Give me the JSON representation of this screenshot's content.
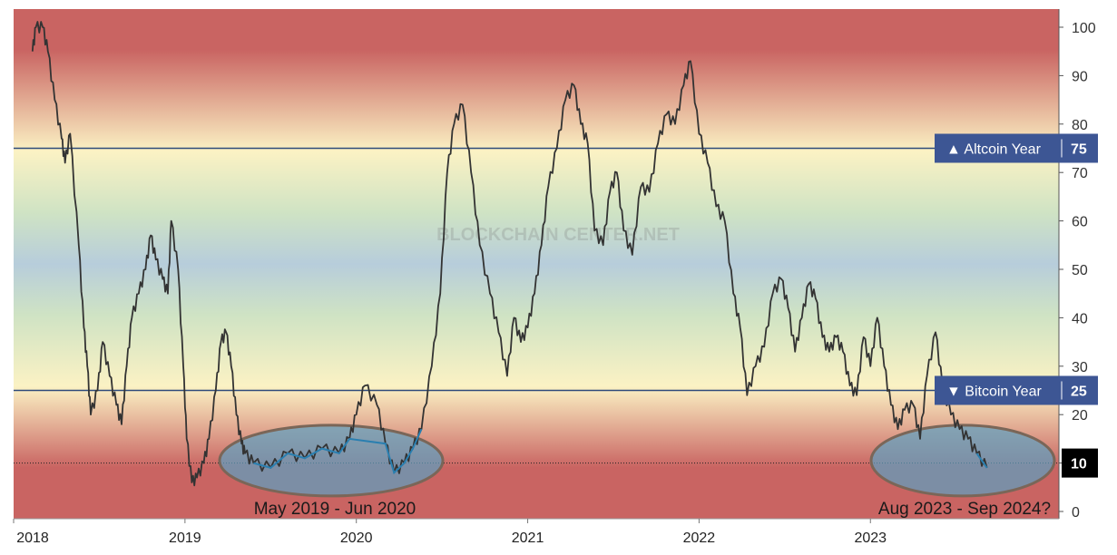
{
  "chart_data": {
    "type": "line",
    "title": "",
    "watermark": "BLOCKCHAIN CENTER.NET",
    "ylim": [
      0,
      100
    ],
    "yticks": [
      0,
      10,
      20,
      30,
      40,
      50,
      60,
      70,
      80,
      90,
      100
    ],
    "xlim": [
      2018.0,
      2024.1
    ],
    "x_tick_labels": [
      "2018",
      "2019",
      "2020",
      "2021",
      "2022",
      "2023"
    ],
    "x_ticks": [
      2018,
      2019,
      2020,
      2021,
      2022,
      2023
    ],
    "colors": {
      "line": "#333333",
      "highlight_line": "#2a7fb0",
      "threshold_line": "#2e4a7a",
      "label_box": "#3d5694",
      "current_box": "#000000",
      "ellipse_fill": "#5b9fc2",
      "ellipse_stroke": "#7a6658",
      "band_red": "#c96462",
      "band_yellow": "#fbf2c4",
      "band_green": "#cfe3c4",
      "band_blue": "#b7cddb"
    },
    "thresholds": [
      {
        "label": "▲ Altcoin Year",
        "value": 75,
        "value_label": "75"
      },
      {
        "label": "▼ Bitcoin Year",
        "value": 25,
        "value_label": "25"
      }
    ],
    "current": {
      "value": 10,
      "label": "10"
    },
    "periods": [
      {
        "label": "May 2019 - Jun 2020",
        "start": 2019.38,
        "end": 2020.47,
        "center_y": 10.5
      },
      {
        "label": "Aug 2023 - Sep 2024?",
        "start": 2023.6,
        "end": 2024.7,
        "center_y": 10.5
      }
    ],
    "series": [
      {
        "x": [
          2018.11,
          2018.13,
          2018.17,
          2018.2,
          2018.24,
          2018.28,
          2018.3,
          2018.33,
          2018.38,
          2018.41,
          2018.43,
          2018.45,
          2018.49,
          2018.52,
          2018.56,
          2018.6,
          2018.63,
          2018.66,
          2018.69,
          2018.73,
          2018.77,
          2018.8,
          2018.83,
          2018.87,
          2018.9,
          2018.92,
          2018.96,
          2018.99,
          2019.01,
          2019.04,
          2019.07,
          2019.11,
          2019.14,
          2019.18,
          2019.21,
          2019.24,
          2019.27,
          2019.3,
          2019.33,
          2019.35,
          2019.4,
          2019.5,
          2019.6,
          2019.7,
          2019.8,
          2019.9,
          2019.96,
          2020.0,
          2020.05,
          2020.12,
          2020.17,
          2020.22,
          2020.28,
          2020.33,
          2020.38,
          2020.44,
          2020.49,
          2020.53,
          2020.57,
          2020.62,
          2020.67,
          2020.72,
          2020.78,
          2020.83,
          2020.88,
          2020.92,
          2020.96,
          2021.0,
          2021.04,
          2021.08,
          2021.12,
          2021.17,
          2021.22,
          2021.27,
          2021.31,
          2021.35,
          2021.39,
          2021.44,
          2021.48,
          2021.52,
          2021.56,
          2021.61,
          2021.66,
          2021.71,
          2021.76,
          2021.81,
          2021.86,
          2021.91,
          2021.95,
          2022.0,
          2022.05,
          2022.1,
          2022.15,
          2022.2,
          2022.24,
          2022.28,
          2022.33,
          2022.38,
          2022.43,
          2022.48,
          2022.52,
          2022.56,
          2022.6,
          2022.64,
          2022.68,
          2022.72,
          2022.76,
          2022.8,
          2022.84,
          2022.88,
          2022.92,
          2022.96,
          2023.0,
          2023.04,
          2023.08,
          2023.12,
          2023.16,
          2023.2,
          2023.25,
          2023.29,
          2023.33,
          2023.38,
          2023.42,
          2023.47,
          2023.52,
          2023.57,
          2023.62,
          2023.68
        ],
        "values": [
          95,
          100,
          100,
          95,
          85,
          77,
          72,
          78,
          55,
          38,
          30,
          20,
          25,
          35,
          28,
          22,
          18,
          30,
          40,
          45,
          50,
          57,
          52,
          48,
          45,
          60,
          50,
          30,
          15,
          6,
          7,
          10,
          15,
          25,
          35,
          37,
          30,
          20,
          14,
          12,
          10,
          9,
          12,
          11,
          13,
          12,
          15,
          20,
          26,
          22,
          14,
          8,
          10,
          13,
          17,
          30,
          45,
          70,
          80,
          84,
          70,
          55,
          45,
          37,
          28,
          40,
          35,
          38,
          45,
          55,
          67,
          75,
          85,
          88,
          80,
          76,
          58,
          55,
          66,
          70,
          58,
          53,
          67,
          66,
          76,
          82,
          80,
          88,
          93,
          78,
          72,
          63,
          60,
          45,
          38,
          24,
          30,
          34,
          45,
          48,
          42,
          33,
          40,
          47,
          44,
          36,
          33,
          36,
          33,
          26,
          24,
          36,
          30,
          40,
          30,
          22,
          17,
          21,
          22,
          15,
          28,
          37,
          26,
          20,
          17,
          15,
          12,
          9
        ]
      }
    ]
  }
}
